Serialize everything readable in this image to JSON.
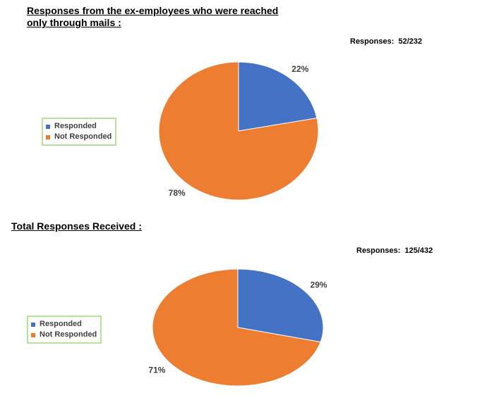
{
  "charts_heading_1": "Responses from the ex-employees who were reached only through mails :",
  "charts_heading_2": "Total Responses Received :",
  "colors": {
    "responded": "#4472c4",
    "not_responded": "#ed7d31"
  },
  "chart_data": [
    {
      "type": "pie",
      "title": "Responses from the ex-employees who were reached only through mails :",
      "responses_label": "Responses:  52/232",
      "categories": [
        "Responded",
        "Not Responded"
      ],
      "values": [
        22,
        78
      ],
      "data_labels": [
        "22%",
        "78%"
      ],
      "legend": {
        "placement": "left",
        "entries": [
          "Responded",
          "Not Responded"
        ]
      }
    },
    {
      "type": "pie",
      "title": "Total Responses Received :",
      "responses_label": "Responses:  125/432",
      "categories": [
        "Responded",
        "Not Responded"
      ],
      "values": [
        29,
        71
      ],
      "data_labels": [
        "29%",
        "71%"
      ],
      "legend": {
        "placement": "left",
        "entries": [
          "Responded",
          "Not Responded"
        ]
      }
    }
  ]
}
